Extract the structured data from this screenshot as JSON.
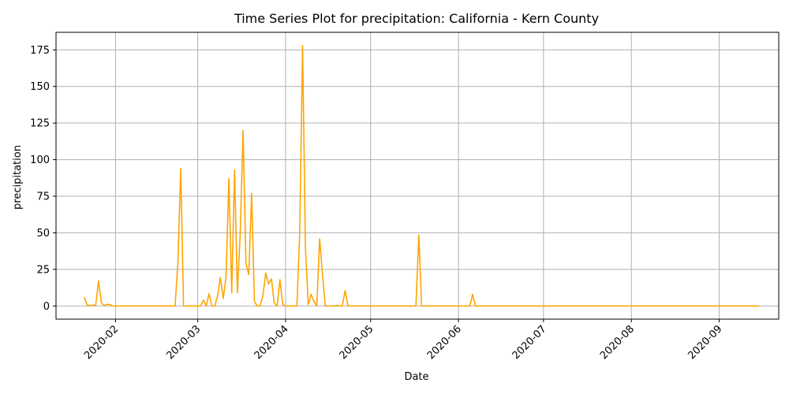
{
  "chart_data": {
    "type": "line",
    "title": "Time Series Plot for precipitation: California - Kern County",
    "xlabel": "Date",
    "ylabel": "precipitation",
    "grid": true,
    "ylim": [
      -9,
      187
    ],
    "xlim": [
      "2020-01-11",
      "2020-09-22"
    ],
    "x_ticks": [
      "2020-02",
      "2020-03",
      "2020-04",
      "2020-05",
      "2020-06",
      "2020-07",
      "2020-08",
      "2020-09"
    ],
    "y_ticks": [
      0,
      25,
      50,
      75,
      100,
      125,
      150,
      175
    ],
    "series": [
      {
        "color": "#ffa500",
        "x": [
          "2020-01-21",
          "2020-01-22",
          "2020-01-23",
          "2020-01-24",
          "2020-01-25",
          "2020-01-26",
          "2020-01-27",
          "2020-01-28",
          "2020-01-29",
          "2020-01-30",
          "2020-01-31",
          "2020-02-01",
          "2020-02-05",
          "2020-02-10",
          "2020-02-15",
          "2020-02-20",
          "2020-02-21",
          "2020-02-22",
          "2020-02-23",
          "2020-02-24",
          "2020-02-25",
          "2020-02-26",
          "2020-02-27",
          "2020-02-28",
          "2020-03-01",
          "2020-03-02",
          "2020-03-03",
          "2020-03-04",
          "2020-03-05",
          "2020-03-06",
          "2020-03-07",
          "2020-03-08",
          "2020-03-09",
          "2020-03-10",
          "2020-03-11",
          "2020-03-12",
          "2020-03-13",
          "2020-03-14",
          "2020-03-15",
          "2020-03-16",
          "2020-03-17",
          "2020-03-18",
          "2020-03-19",
          "2020-03-20",
          "2020-03-21",
          "2020-03-22",
          "2020-03-23",
          "2020-03-24",
          "2020-03-25",
          "2020-03-26",
          "2020-03-27",
          "2020-03-28",
          "2020-03-29",
          "2020-03-30",
          "2020-03-31",
          "2020-04-01",
          "2020-04-02",
          "2020-04-03",
          "2020-04-04",
          "2020-04-05",
          "2020-04-06",
          "2020-04-07",
          "2020-04-08",
          "2020-04-09",
          "2020-04-10",
          "2020-04-11",
          "2020-04-12",
          "2020-04-13",
          "2020-04-14",
          "2020-04-15",
          "2020-04-16",
          "2020-04-17",
          "2020-04-18",
          "2020-04-19",
          "2020-04-20",
          "2020-04-21",
          "2020-04-22",
          "2020-04-23",
          "2020-04-24",
          "2020-05-01",
          "2020-05-10",
          "2020-05-15",
          "2020-05-16",
          "2020-05-17",
          "2020-05-18",
          "2020-05-19",
          "2020-05-20",
          "2020-05-25",
          "2020-06-01",
          "2020-06-04",
          "2020-06-05",
          "2020-06-06",
          "2020-06-07",
          "2020-06-08",
          "2020-07-01",
          "2020-08-01",
          "2020-09-01",
          "2020-09-15"
        ],
        "values": [
          6,
          0.5,
          0.5,
          0.5,
          0.5,
          17,
          2,
          0.5,
          1,
          1,
          0,
          0,
          0,
          0,
          0,
          0,
          0,
          0,
          30,
          94,
          0,
          0,
          0,
          0,
          0,
          0,
          4,
          0,
          8.5,
          0,
          0,
          7,
          19.5,
          5,
          20,
          87,
          9,
          93,
          9,
          50,
          120,
          29,
          21.5,
          77,
          3,
          0,
          0,
          7,
          22.5,
          15,
          18.5,
          2,
          0,
          18,
          1,
          0,
          0,
          0,
          0,
          0,
          50,
          178,
          40,
          1,
          8,
          3,
          0,
          46,
          22,
          0,
          0,
          0,
          0,
          0.5,
          0,
          0,
          10.5,
          0,
          0,
          0,
          0,
          0,
          0,
          0,
          48.5,
          0,
          0,
          0,
          0,
          0,
          0,
          8,
          0,
          0,
          0,
          0,
          0,
          0
        ]
      }
    ]
  }
}
